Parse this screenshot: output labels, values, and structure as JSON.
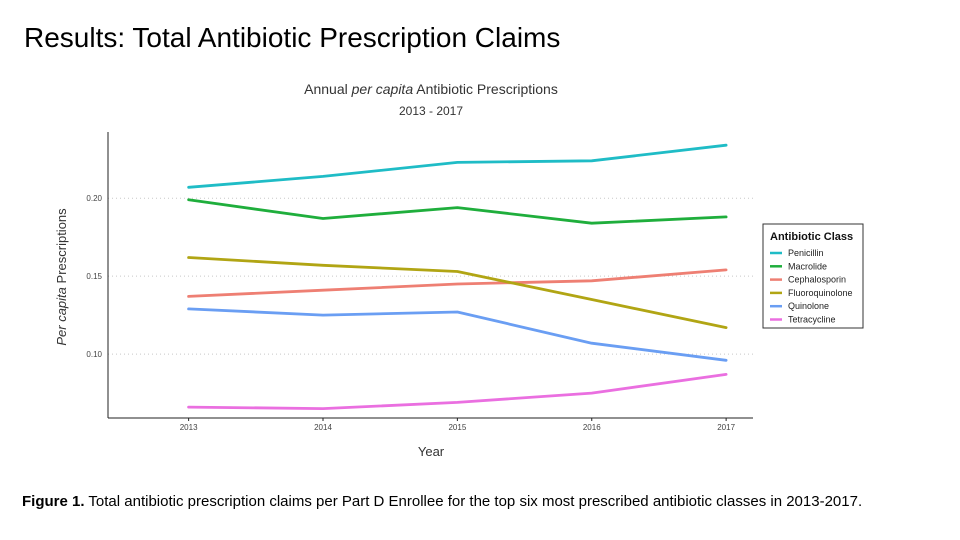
{
  "slide": {
    "title": "Results: Total Antibiotic Prescription Claims",
    "caption_bold": "Figure 1.",
    "caption_text": " Total antibiotic prescription claims per Part D Enrollee for the top six most prescribed antibiotic classes in 2013-2017."
  },
  "chart_data": {
    "type": "line",
    "title": "Annual per capita Antibiotic Prescriptions",
    "title_parts": [
      "Annual ",
      "per capita",
      " Antibiotic Prescriptions"
    ],
    "subtitle": "2013 - 2017",
    "xlabel": "Year",
    "ylabel_parts": [
      "Per capita",
      " Prescriptions"
    ],
    "x": [
      2013,
      2014,
      2015,
      2016,
      2017
    ],
    "xticks": [
      "2013",
      "2014",
      "2015",
      "2016",
      "2017"
    ],
    "yticks": [
      0.1,
      0.15,
      0.2
    ],
    "ytick_labels": [
      "0.10",
      "0.15",
      "0.20"
    ],
    "xlim": [
      2012.4,
      2017.2
    ],
    "ylim": [
      0.059,
      0.2425
    ],
    "grid": "horizontal-dotted",
    "legend": {
      "title": "Antibiotic Class",
      "position": "right"
    },
    "series": [
      {
        "name": "Penicillin",
        "color": "#1fbcc6",
        "values": [
          0.207,
          0.214,
          0.223,
          0.224,
          0.234
        ]
      },
      {
        "name": "Macrolide",
        "color": "#1fae3c",
        "values": [
          0.199,
          0.187,
          0.194,
          0.184,
          0.188
        ]
      },
      {
        "name": "Cephalosporin",
        "color": "#ee7f73",
        "values": [
          0.137,
          0.141,
          0.145,
          0.147,
          0.154
        ]
      },
      {
        "name": "Fluoroquinolone",
        "color": "#b1a514",
        "values": [
          0.162,
          0.157,
          0.153,
          0.135,
          0.117
        ]
      },
      {
        "name": "Quinolone",
        "color": "#6a9ef3",
        "values": [
          0.129,
          0.125,
          0.127,
          0.107,
          0.096
        ]
      },
      {
        "name": "Tetracycline",
        "color": "#ea6fe0",
        "values": [
          0.066,
          0.065,
          0.069,
          0.075,
          0.087
        ]
      }
    ]
  }
}
